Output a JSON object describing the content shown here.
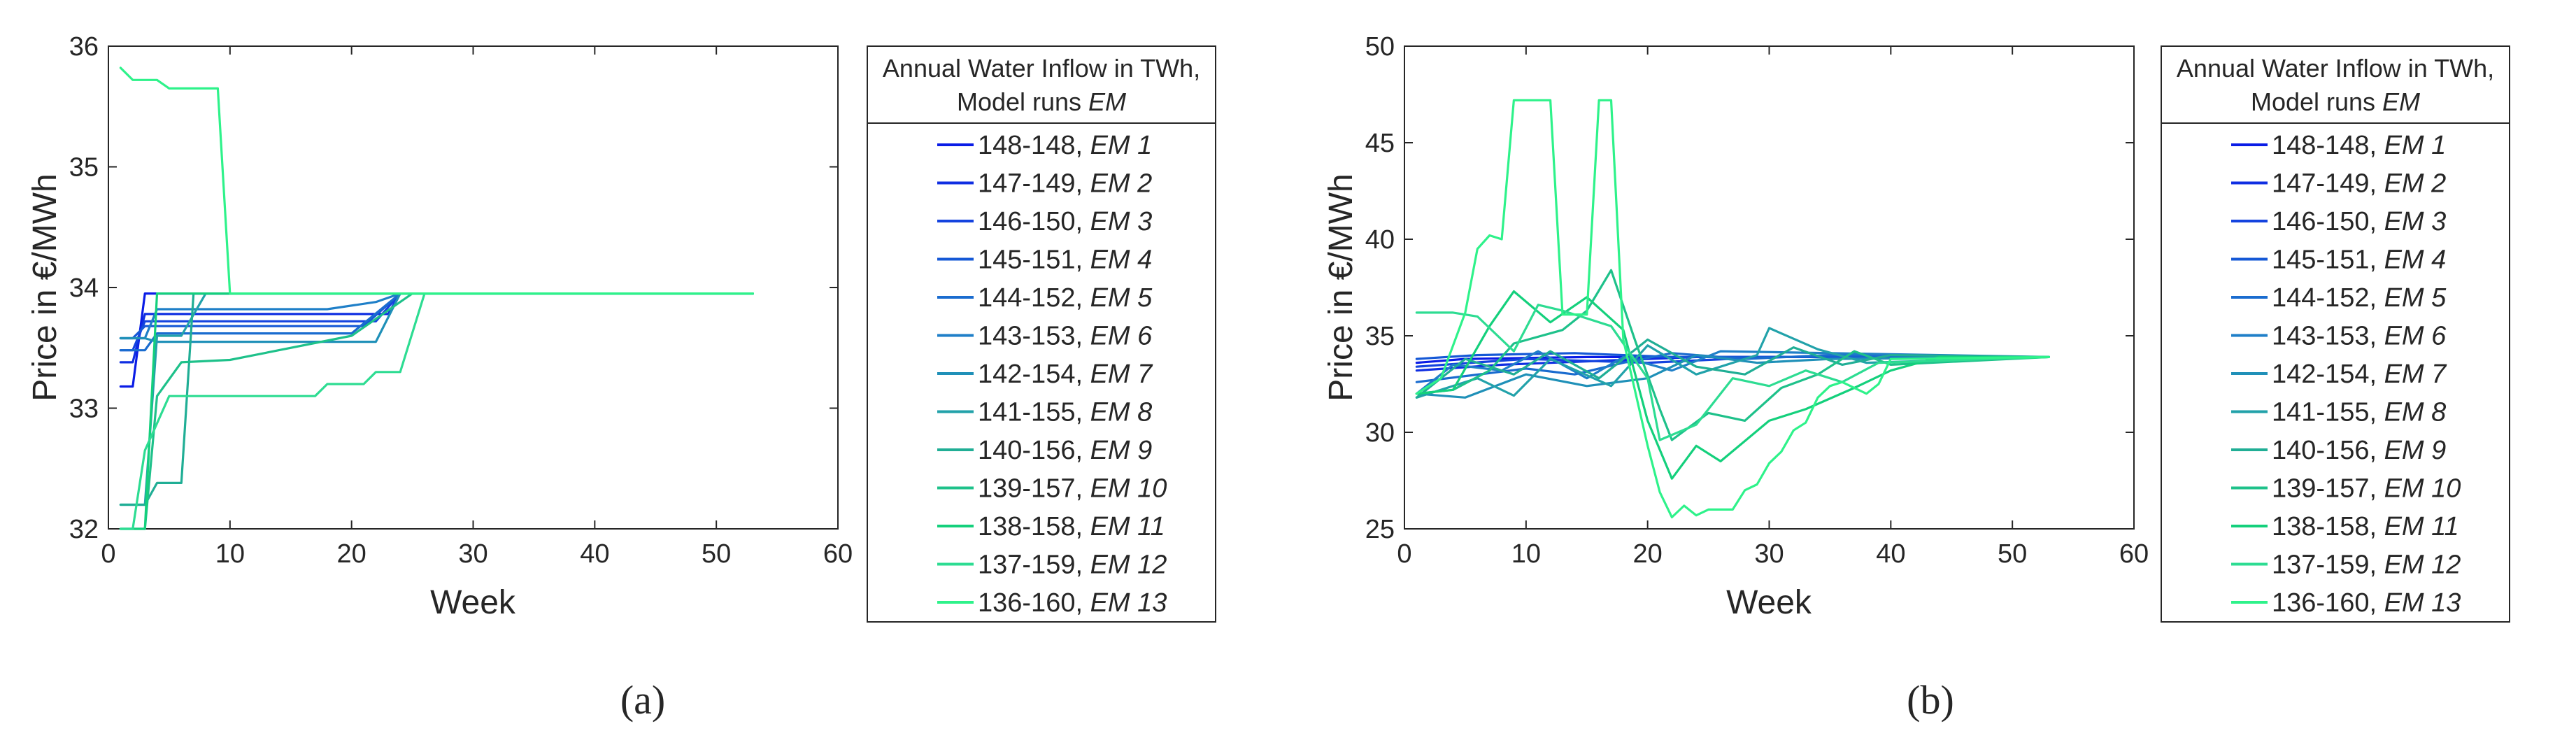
{
  "figure": {
    "panels": [
      "(a)",
      "(b)"
    ]
  },
  "chart_data": [
    {
      "type": "line",
      "panel_label": "(a)",
      "xlabel": "Week",
      "ylabel": "Price in €/MWh",
      "xlim": [
        0,
        60
      ],
      "ylim": [
        32,
        36
      ],
      "xticks": [
        0,
        10,
        20,
        30,
        40,
        50,
        60
      ],
      "yticks": [
        32,
        33,
        34,
        35,
        36
      ],
      "grid": false,
      "legend": {
        "title_line1": "Annual Water Inflow in TWh,",
        "title_line2_prefix": "Model runs ",
        "title_line2_italic": "EM",
        "placement": "outside-right"
      },
      "series": [
        {
          "label": "148-148,",
          "name": "EM 1",
          "color": "#0a1ce6",
          "x": [
            1,
            2,
            3,
            24,
            53
          ],
          "y": [
            33.18,
            33.18,
            33.95,
            33.95,
            33.95
          ]
        },
        {
          "label": "147-149,",
          "name": "EM 2",
          "color": "#0f2ee2",
          "x": [
            1,
            2,
            3,
            23,
            24,
            53
          ],
          "y": [
            33.38,
            33.38,
            33.78,
            33.78,
            33.95,
            33.95
          ]
        },
        {
          "label": "146-150,",
          "name": "EM 3",
          "color": "#1443df",
          "x": [
            1,
            2,
            3,
            22,
            24,
            53
          ],
          "y": [
            33.48,
            33.48,
            33.72,
            33.72,
            33.95,
            33.95
          ]
        },
        {
          "label": "145-151,",
          "name": "EM 4",
          "color": "#1558d6",
          "x": [
            1,
            2,
            3,
            21,
            24,
            53
          ],
          "y": [
            33.58,
            33.58,
            33.68,
            33.68,
            33.95,
            33.95
          ]
        },
        {
          "label": "144-152,",
          "name": "EM 5",
          "color": "#1a6ccf",
          "x": [
            1,
            3,
            4,
            20,
            24,
            53
          ],
          "y": [
            33.48,
            33.48,
            33.62,
            33.62,
            33.95,
            33.95
          ]
        },
        {
          "label": "143-153,",
          "name": "EM 6",
          "color": "#1f7fc8",
          "x": [
            1,
            3,
            4,
            18,
            22,
            24,
            53
          ],
          "y": [
            33.58,
            33.58,
            33.82,
            33.82,
            33.88,
            33.95,
            33.95
          ]
        },
        {
          "label": "142-154,",
          "name": "EM 7",
          "color": "#1f90b8",
          "x": [
            1,
            3,
            4,
            22,
            24,
            53
          ],
          "y": [
            33.58,
            33.58,
            33.55,
            33.55,
            33.95,
            33.95
          ]
        },
        {
          "label": "141-155,",
          "name": "EM 8",
          "color": "#22a2aa",
          "x": [
            1,
            3,
            4,
            6,
            8,
            53
          ],
          "y": [
            32.2,
            32.2,
            33.6,
            33.6,
            33.95,
            33.95
          ]
        },
        {
          "label": "140-156,",
          "name": "EM 9",
          "color": "#20ae95",
          "x": [
            1,
            3,
            4,
            6,
            7,
            53
          ],
          "y": [
            32.2,
            32.2,
            32.38,
            32.38,
            33.95,
            33.95
          ]
        },
        {
          "label": "139-157,",
          "name": "EM 10",
          "color": "#1ec18a",
          "x": [
            1,
            3,
            4,
            6,
            10,
            20,
            25,
            53
          ],
          "y": [
            32,
            32,
            33.1,
            33.38,
            33.4,
            33.6,
            33.95,
            33.95
          ]
        },
        {
          "label": "138-158,",
          "name": "EM 11",
          "color": "#14d07c",
          "x": [
            1,
            2,
            3,
            4,
            53
          ],
          "y": [
            32,
            32,
            32.0,
            33.95,
            33.95
          ]
        },
        {
          "label": "137-159,",
          "name": "EM 12",
          "color": "#2ddc92",
          "x": [
            1,
            2,
            3,
            5,
            17,
            18,
            21,
            22,
            24,
            26,
            53
          ],
          "y": [
            32,
            32,
            32.65,
            33.1,
            33.1,
            33.2,
            33.2,
            33.3,
            33.3,
            33.95,
            33.95
          ]
        },
        {
          "label": "136-160,",
          "name": "EM 13",
          "color": "#2ef28a",
          "x": [
            1,
            2,
            4,
            5,
            9,
            10,
            53
          ],
          "y": [
            35.82,
            35.72,
            35.72,
            35.65,
            35.65,
            33.95,
            33.95
          ]
        }
      ]
    },
    {
      "type": "line",
      "panel_label": "(b)",
      "xlabel": "Week",
      "ylabel": "Price in €/MWh",
      "xlim": [
        0,
        60
      ],
      "ylim": [
        25,
        50
      ],
      "xticks": [
        0,
        10,
        20,
        30,
        40,
        50,
        60
      ],
      "yticks": [
        25,
        30,
        35,
        40,
        45,
        50
      ],
      "grid": false,
      "legend": {
        "title_line1": "Annual Water Inflow in TWh,",
        "title_line2_prefix": "Model runs ",
        "title_line2_italic": "EM",
        "placement": "outside-right"
      },
      "series": [
        {
          "label": "148-148,",
          "name": "EM 1",
          "color": "#0a1ce6",
          "x": [
            1,
            5,
            15,
            30,
            53
          ],
          "y": [
            33.6,
            33.8,
            33.9,
            33.9,
            33.9
          ]
        },
        {
          "label": "147-149,",
          "name": "EM 2",
          "color": "#0f2ee2",
          "x": [
            1,
            8,
            16,
            24,
            53
          ],
          "y": [
            33.2,
            33.5,
            33.7,
            33.9,
            33.9
          ]
        },
        {
          "label": "146-150,",
          "name": "EM 3",
          "color": "#1443df",
          "x": [
            1,
            10,
            20,
            30,
            53
          ],
          "y": [
            33.4,
            33.8,
            33.6,
            33.9,
            33.9
          ]
        },
        {
          "label": "145-151,",
          "name": "EM 4",
          "color": "#1558d6",
          "x": [
            1,
            6,
            14,
            22,
            53
          ],
          "y": [
            33.8,
            34.0,
            34.1,
            33.9,
            33.9
          ]
        },
        {
          "label": "144-152,",
          "name": "EM 5",
          "color": "#1a6ccf",
          "x": [
            1,
            10,
            14,
            18,
            22,
            28,
            35,
            53
          ],
          "y": [
            32.6,
            33.3,
            33.0,
            33.6,
            34.1,
            33.8,
            34.0,
            33.9
          ]
        },
        {
          "label": "143-153,",
          "name": "EM 6",
          "color": "#1f7fc8",
          "x": [
            1,
            4,
            8,
            11,
            15,
            18,
            22,
            26,
            53
          ],
          "y": [
            32.0,
            33.5,
            33.2,
            34.2,
            32.8,
            33.9,
            33.2,
            34.2,
            33.9
          ]
        },
        {
          "label": "142-154,",
          "name": "EM 7",
          "color": "#1f90b8",
          "x": [
            1,
            5,
            10,
            15,
            20,
            24,
            29,
            35,
            53
          ],
          "y": [
            32.0,
            31.8,
            33.0,
            32.4,
            32.8,
            34.0,
            33.6,
            33.8,
            33.9
          ]
        },
        {
          "label": "141-155,",
          "name": "EM 8",
          "color": "#22a2aa",
          "x": [
            1,
            6,
            9,
            12,
            17,
            20,
            24,
            29,
            30,
            34,
            38,
            53
          ],
          "y": [
            31.8,
            32.8,
            31.9,
            33.8,
            32.4,
            34.5,
            33.0,
            34.0,
            35.4,
            34.3,
            33.6,
            33.9
          ]
        },
        {
          "label": "140-156,",
          "name": "EM 9",
          "color": "#20ae95",
          "x": [
            1,
            5,
            9,
            12,
            16,
            20,
            24,
            28,
            32,
            36,
            40,
            53
          ],
          "y": [
            31.8,
            33.8,
            33.0,
            34.2,
            32.8,
            34.8,
            33.4,
            33.0,
            34.4,
            33.5,
            34.0,
            33.9
          ]
        },
        {
          "label": "139-157,",
          "name": "EM 10",
          "color": "#1ec18a",
          "x": [
            1,
            4,
            7,
            9,
            13,
            15,
            17,
            19,
            21,
            22,
            25,
            28,
            31,
            34,
            37,
            40,
            53
          ],
          "y": [
            32.0,
            32.2,
            33.2,
            34.6,
            35.3,
            36.3,
            38.4,
            34.7,
            31.2,
            29.6,
            31.0,
            30.6,
            32.3,
            33.0,
            34.2,
            33.5,
            33.9
          ]
        },
        {
          "label": "138-158,",
          "name": "EM 11",
          "color": "#14d07c",
          "x": [
            1,
            4,
            7,
            9,
            12,
            15,
            18,
            20,
            22,
            24,
            26,
            30,
            33,
            37,
            40,
            44,
            53
          ],
          "y": [
            32.0,
            32.2,
            35.5,
            37.3,
            35.7,
            37.0,
            35.3,
            30.6,
            27.6,
            29.3,
            28.5,
            30.6,
            31.2,
            32.3,
            33.2,
            33.9,
            33.9
          ]
        },
        {
          "label": "137-159,",
          "name": "EM 12",
          "color": "#2ddc92",
          "x": [
            1,
            4,
            6,
            9,
            11,
            13,
            17,
            20,
            21,
            24,
            27,
            30,
            33,
            36,
            39,
            53
          ],
          "y": [
            36.2,
            36.2,
            36.0,
            34.2,
            36.6,
            36.3,
            35.5,
            32.8,
            29.6,
            30.4,
            32.8,
            32.4,
            33.2,
            32.6,
            33.6,
            33.9
          ]
        },
        {
          "label": "136-160,",
          "name": "EM 13",
          "color": "#2ef28a",
          "x": [
            1,
            3,
            5,
            6,
            7,
            8,
            9,
            12,
            13,
            15,
            16,
            17,
            18,
            20,
            21,
            22,
            23,
            24,
            25,
            27,
            28,
            29,
            30,
            31,
            32,
            33,
            34,
            35,
            36,
            38,
            39,
            40,
            53
          ],
          "y": [
            32.0,
            32.8,
            36.2,
            39.5,
            40.2,
            40.0,
            47.2,
            47.2,
            36.1,
            36.1,
            47.2,
            47.2,
            34.8,
            29.3,
            26.9,
            25.6,
            26.2,
            25.7,
            26.0,
            26.0,
            27.0,
            27.3,
            28.4,
            29.0,
            30.1,
            30.5,
            31.8,
            32.4,
            32.6,
            32.0,
            32.5,
            33.8,
            33.9
          ]
        }
      ]
    }
  ]
}
